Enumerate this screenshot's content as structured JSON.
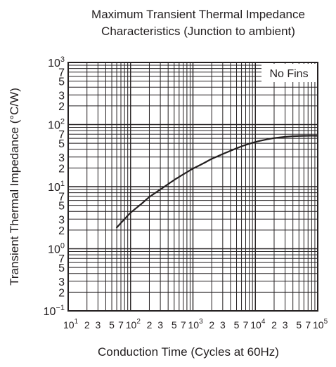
{
  "chart_data": {
    "type": "line",
    "title": [
      "Maximum Transient Thermal Impedance",
      "Characteristics (Junction to ambient)"
    ],
    "xlabel": "Conduction Time (Cycles at 60Hz)",
    "ylabel": "Transient Thermal Impedance  (°C/W)",
    "xscale": "log",
    "yscale": "log",
    "xlim": [
      10,
      100000
    ],
    "ylim": [
      0.1,
      1000
    ],
    "grid": true,
    "annotation": "No Fins",
    "x_ticks": [
      {
        "value": 10,
        "base": "10",
        "exp": "1"
      },
      {
        "value": 20,
        "base": "2",
        "exp": ""
      },
      {
        "value": 30,
        "base": "3",
        "exp": ""
      },
      {
        "value": 50,
        "base": "5",
        "exp": ""
      },
      {
        "value": 70,
        "base": "7",
        "exp": ""
      },
      {
        "value": 100,
        "base": "10",
        "exp": "2"
      },
      {
        "value": 200,
        "base": "2",
        "exp": ""
      },
      {
        "value": 300,
        "base": "3",
        "exp": ""
      },
      {
        "value": 500,
        "base": "5",
        "exp": ""
      },
      {
        "value": 700,
        "base": "7",
        "exp": ""
      },
      {
        "value": 1000,
        "base": "10",
        "exp": "3"
      },
      {
        "value": 2000,
        "base": "2",
        "exp": ""
      },
      {
        "value": 3000,
        "base": "3",
        "exp": ""
      },
      {
        "value": 5000,
        "base": "5",
        "exp": ""
      },
      {
        "value": 7000,
        "base": "7",
        "exp": ""
      },
      {
        "value": 10000,
        "base": "10",
        "exp": "4"
      },
      {
        "value": 20000,
        "base": "2",
        "exp": ""
      },
      {
        "value": 30000,
        "base": "3",
        "exp": ""
      },
      {
        "value": 50000,
        "base": "5",
        "exp": ""
      },
      {
        "value": 70000,
        "base": "7",
        "exp": ""
      },
      {
        "value": 100000,
        "base": "10",
        "exp": "5"
      }
    ],
    "y_ticks": [
      {
        "value": 1000,
        "base": "10",
        "exp": "3"
      },
      {
        "value": 700,
        "base": "7",
        "exp": ""
      },
      {
        "value": 500,
        "base": "5",
        "exp": ""
      },
      {
        "value": 300,
        "base": "3",
        "exp": ""
      },
      {
        "value": 200,
        "base": "2",
        "exp": ""
      },
      {
        "value": 100,
        "base": "10",
        "exp": "2"
      },
      {
        "value": 70,
        "base": "7",
        "exp": ""
      },
      {
        "value": 50,
        "base": "5",
        "exp": ""
      },
      {
        "value": 30,
        "base": "3",
        "exp": ""
      },
      {
        "value": 20,
        "base": "2",
        "exp": ""
      },
      {
        "value": 10,
        "base": "10",
        "exp": "1"
      },
      {
        "value": 7,
        "base": "7",
        "exp": ""
      },
      {
        "value": 5,
        "base": "5",
        "exp": ""
      },
      {
        "value": 3,
        "base": "3",
        "exp": ""
      },
      {
        "value": 2,
        "base": "2",
        "exp": ""
      },
      {
        "value": 1,
        "base": "10",
        "exp": "0"
      },
      {
        "value": 0.7,
        "base": "7",
        "exp": ""
      },
      {
        "value": 0.5,
        "base": "5",
        "exp": ""
      },
      {
        "value": 0.3,
        "base": "3",
        "exp": ""
      },
      {
        "value": 0.2,
        "base": "2",
        "exp": ""
      },
      {
        "value": 0.1,
        "base": "10",
        "exp": "−1"
      }
    ],
    "series": [
      {
        "x": [
          60,
          80,
          100,
          150,
          200,
          300,
          500,
          700,
          1000,
          1500,
          2000,
          3000,
          5000,
          7000,
          10000,
          15000,
          20000,
          30000,
          50000,
          70000,
          100000
        ],
        "y": [
          2.2,
          3.0,
          3.8,
          5.3,
          6.8,
          9.0,
          12.8,
          15.8,
          19.5,
          24.0,
          28.0,
          33.5,
          41.5,
          47.0,
          52.5,
          57.5,
          60.5,
          63.5,
          65.5,
          66.0,
          66.0
        ]
      }
    ],
    "colors": {
      "ink": "#231f20",
      "background": "#ffffff"
    }
  }
}
